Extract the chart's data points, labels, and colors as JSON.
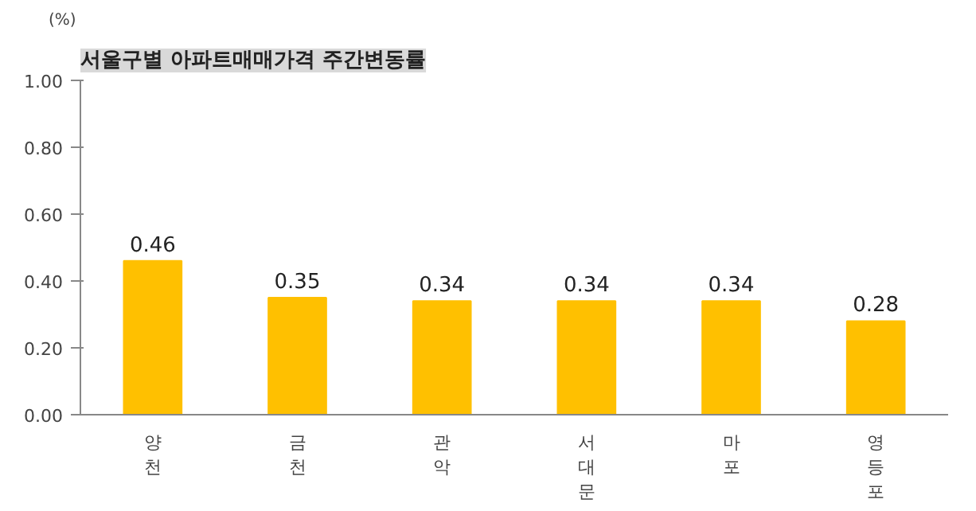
{
  "chart_data": {
    "type": "bar",
    "title": "서울구별 아파트매매가격 주간변동률",
    "ylabel": "(%)",
    "categories": [
      "양천",
      "금천",
      "관악",
      "서대문",
      "마포",
      "영등포"
    ],
    "values": [
      0.46,
      0.35,
      0.34,
      0.34,
      0.34,
      0.28
    ],
    "color": "#ffc000",
    "ylim": [
      0,
      1
    ],
    "yticks": [
      {
        "value": 0,
        "label": "0.00"
      },
      {
        "value": 0.2,
        "label": "0.20"
      },
      {
        "value": 0.4,
        "label": "0.40"
      },
      {
        "value": 0.6,
        "label": "0.60"
      },
      {
        "value": 0.8,
        "label": "0.80"
      },
      {
        "value": 1,
        "label": "1.00"
      }
    ],
    "grid": false,
    "data_labels": true
  }
}
